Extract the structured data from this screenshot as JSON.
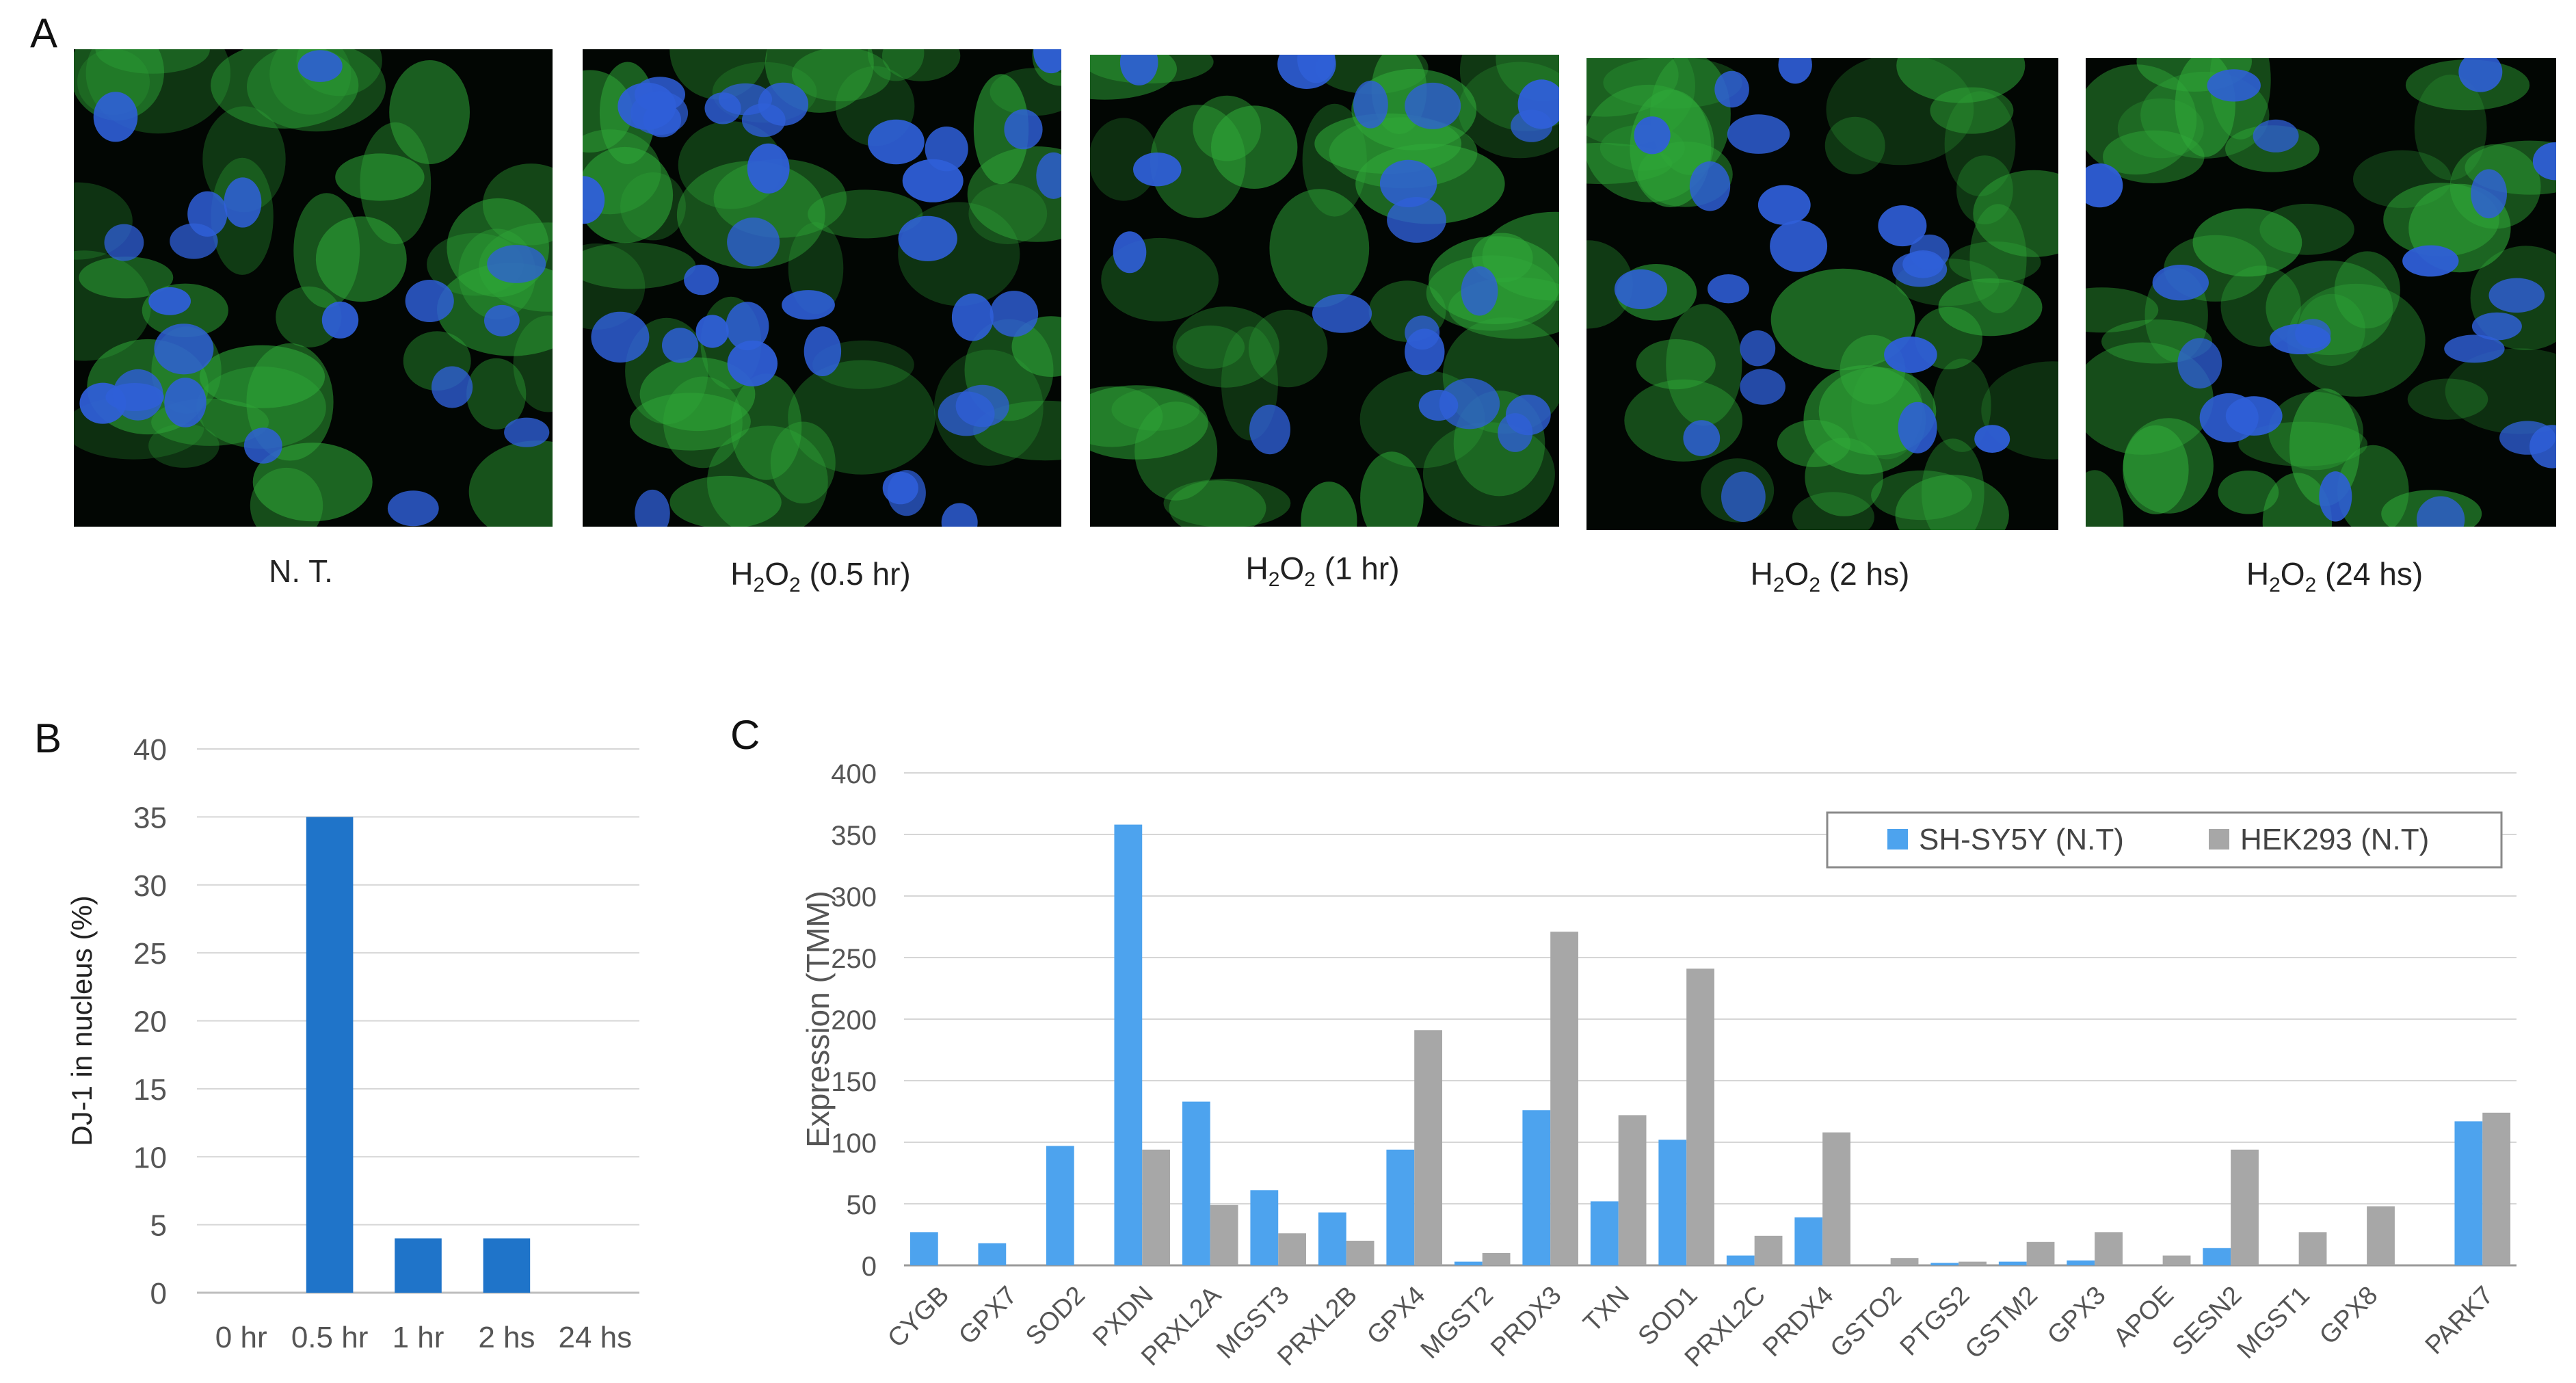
{
  "panels": {
    "a": "A",
    "b": "B",
    "c": "C"
  },
  "micrographs": [
    {
      "caption_prefix": "N. T.",
      "caption_sub": "",
      "caption_suffix": ""
    },
    {
      "caption_prefix": "H",
      "caption_sub": "2",
      "caption_suffix": "O",
      "caption_sub2": "2",
      "caption_tail": " (0.5 hr)"
    },
    {
      "caption_prefix": "H",
      "caption_sub": "2",
      "caption_suffix": "O",
      "caption_sub2": "2",
      "caption_tail": " (1 hr)"
    },
    {
      "caption_prefix": "H",
      "caption_sub": "2",
      "caption_suffix": "O",
      "caption_sub2": "2",
      "caption_tail": " (2 hs)"
    },
    {
      "caption_prefix": "H",
      "caption_sub": "2",
      "caption_suffix": "O",
      "caption_sub2": "2",
      "caption_tail": " (24 hs)"
    }
  ],
  "colors": {
    "nucleus": "#2f5fd8",
    "cytoplasm": "#2fa838",
    "bar_b": "#1f74c9",
    "sh_sy5y": "#4da3ee",
    "hek293": "#a7a7a7",
    "grid": "#d6d6d6"
  },
  "chart_data": [
    {
      "type": "bar",
      "panel": "B",
      "categories": [
        "0 hr",
        "0.5 hr",
        "1 hr",
        "2 hs",
        "24 hs"
      ],
      "values": [
        0,
        35,
        4,
        4,
        0
      ],
      "ylabel": "DJ-1 in nucleus (%)",
      "xlabel": "",
      "ylim": [
        0,
        40
      ],
      "yticks": [
        "0",
        "5",
        "10",
        "15",
        "20",
        "25",
        "30",
        "35",
        "40"
      ],
      "grid": true,
      "legend": "none"
    },
    {
      "type": "bar",
      "panel": "C",
      "categories": [
        "CYGB",
        "GPX7",
        "SOD2",
        "PXDN",
        "PRXL2A",
        "MGST3",
        "PRXL2B",
        "GPX4",
        "MGST2",
        "PRDX3",
        "TXN",
        "SOD1",
        "PRXL2C",
        "PRDX4",
        "GSTO2",
        "PTGS2",
        "GSTM2",
        "GPX3",
        "APOE",
        "SESN2",
        "MGST1",
        "GPX8",
        "PARK7"
      ],
      "series": [
        {
          "name": "SH-SY5Y (N.T)",
          "values": [
            27,
            18,
            97,
            358,
            133,
            61,
            43,
            94,
            3,
            126,
            52,
            102,
            8,
            39,
            0,
            2,
            3,
            4,
            0,
            14,
            0,
            0,
            117
          ]
        },
        {
          "name": "HEK293 (N.T)",
          "values": [
            0,
            0,
            0,
            94,
            49,
            26,
            20,
            191,
            10,
            271,
            122,
            241,
            24,
            108,
            6,
            3,
            19,
            27,
            8,
            94,
            27,
            48,
            124
          ]
        }
      ],
      "ylabel": "Expression (TMM)",
      "xlabel": "",
      "ylim": [
        0,
        400
      ],
      "yticks": [
        "0",
        "50",
        "100",
        "150",
        "200",
        "250",
        "300",
        "350",
        "400"
      ],
      "grid": true,
      "legend": "top-right"
    }
  ]
}
